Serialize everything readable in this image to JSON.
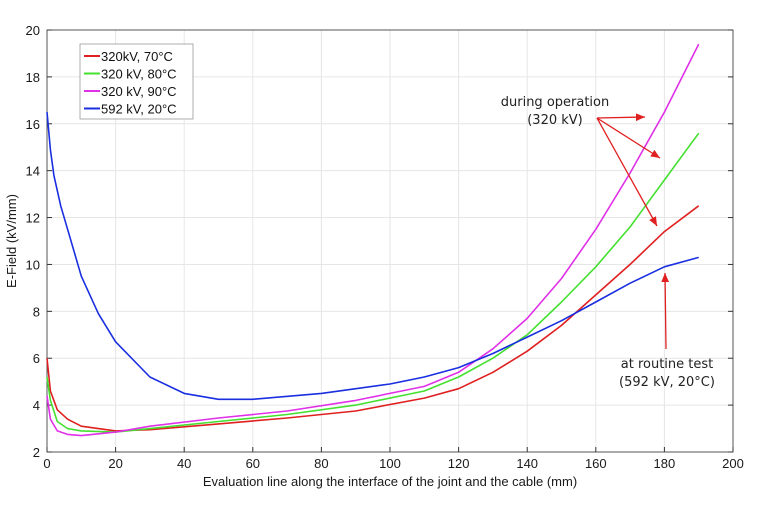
{
  "chart_data": {
    "type": "line",
    "title": "",
    "xlabel": "Evaluation line along the interface of the joint and the cable (mm)",
    "ylabel": "E-Field (kV/mm)",
    "xlim": [
      0,
      200
    ],
    "ylim": [
      2,
      20
    ],
    "xticks": [
      0,
      20,
      40,
      60,
      80,
      100,
      120,
      140,
      160,
      180,
      200
    ],
    "yticks": [
      2,
      4,
      6,
      8,
      10,
      12,
      14,
      16,
      18,
      20
    ],
    "grid": true,
    "legend": "top-left",
    "series": [
      {
        "name": "320kV, 70°C",
        "color": "#e02020",
        "x": [
          0,
          1,
          3,
          6,
          10,
          20,
          30,
          50,
          70,
          90,
          110,
          120,
          130,
          140,
          150,
          160,
          170,
          180,
          190
        ],
        "y": [
          6,
          4.6,
          3.8,
          3.4,
          3.1,
          2.9,
          2.95,
          3.2,
          3.45,
          3.75,
          4.3,
          4.7,
          5.4,
          6.3,
          7.4,
          8.7,
          10.0,
          11.4,
          12.5
        ]
      },
      {
        "name": "320 kV, 80°C",
        "color": "#44e030",
        "x": [
          0,
          1,
          3,
          6,
          10,
          20,
          30,
          50,
          70,
          90,
          110,
          120,
          130,
          140,
          150,
          160,
          170,
          180,
          190
        ],
        "y": [
          5.2,
          4.2,
          3.3,
          3.0,
          2.9,
          2.85,
          3.0,
          3.3,
          3.6,
          4.0,
          4.6,
          5.2,
          6.0,
          7.0,
          8.4,
          9.9,
          11.6,
          13.6,
          15.6
        ]
      },
      {
        "name": "320 kV, 90°C",
        "color": "#e030e8",
        "x": [
          0,
          1,
          3,
          6,
          10,
          20,
          30,
          50,
          70,
          90,
          110,
          120,
          130,
          140,
          150,
          160,
          170,
          180,
          190
        ],
        "y": [
          4.4,
          3.4,
          2.9,
          2.75,
          2.7,
          2.85,
          3.1,
          3.45,
          3.75,
          4.2,
          4.8,
          5.4,
          6.4,
          7.7,
          9.4,
          11.5,
          13.9,
          16.5,
          19.4
        ]
      },
      {
        "name": "592 kV, 20°C",
        "color": "#1a2fe0",
        "x": [
          0,
          1,
          2,
          4,
          6,
          10,
          15,
          20,
          30,
          40,
          50,
          60,
          80,
          100,
          110,
          120,
          130,
          140,
          150,
          160,
          170,
          180,
          190
        ],
        "y": [
          16.5,
          14.9,
          13.8,
          12.5,
          11.5,
          9.5,
          7.9,
          6.7,
          5.2,
          4.5,
          4.25,
          4.25,
          4.5,
          4.9,
          5.2,
          5.6,
          6.2,
          6.9,
          7.6,
          8.4,
          9.2,
          9.9,
          10.3
        ]
      }
    ],
    "annotations": [
      {
        "lines": [
          "during operation",
          "(320 kV)"
        ],
        "arrow_color": "#e02020"
      },
      {
        "lines": [
          "at routine test",
          "(592 kV, 20°C)"
        ],
        "arrow_color": "#e02020"
      }
    ]
  }
}
